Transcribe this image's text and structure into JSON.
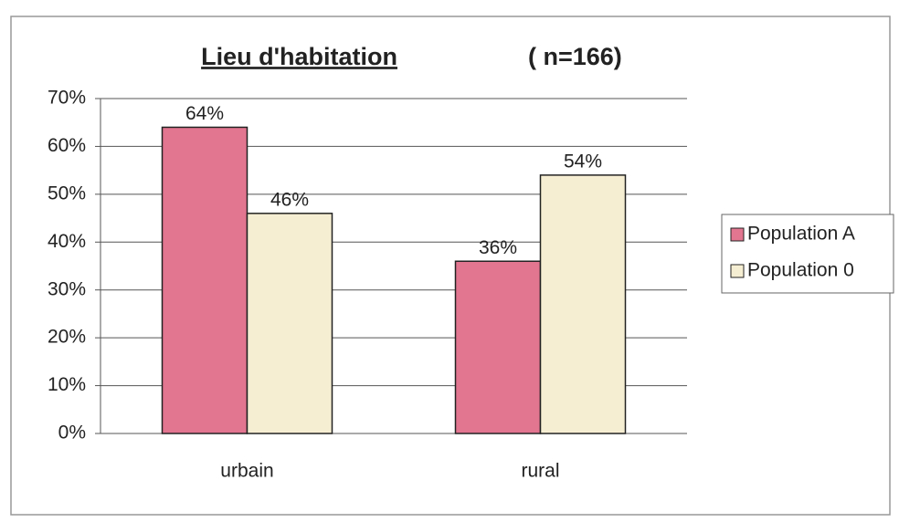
{
  "chart_data": {
    "type": "bar",
    "title": "Lieu d'habitation",
    "subtitle": "( n=166)",
    "categories": [
      "urbain",
      "rural"
    ],
    "series": [
      {
        "name": "Population A",
        "color": "#e27590",
        "values": [
          64,
          36
        ],
        "value_labels": [
          "64%",
          "36%"
        ]
      },
      {
        "name": "Population 0",
        "color": "#f6eed3",
        "values": [
          46,
          54
        ],
        "value_labels": [
          "46%",
          "54%"
        ]
      }
    ],
    "ylim": [
      0,
      70
    ],
    "yticks": [
      {
        "value": 0,
        "label": "0%"
      },
      {
        "value": 10,
        "label": "10%"
      },
      {
        "value": 20,
        "label": "20%"
      },
      {
        "value": 30,
        "label": "30%"
      },
      {
        "value": 40,
        "label": "40%"
      },
      {
        "value": 50,
        "label": "50%"
      },
      {
        "value": 60,
        "label": "60%"
      },
      {
        "value": 70,
        "label": "70%"
      }
    ],
    "grid": true,
    "legend": "right"
  }
}
